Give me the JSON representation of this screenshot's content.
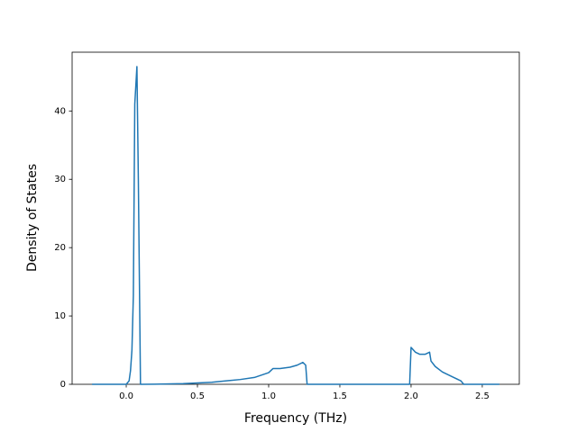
{
  "chart_data": {
    "type": "line",
    "xlabel": "Frequency (THz)",
    "ylabel": "Density of States",
    "x": [
      -0.24,
      0.0,
      0.02,
      0.03,
      0.04,
      0.05,
      0.06,
      0.075,
      0.085,
      0.095,
      0.1,
      0.11,
      0.2,
      0.4,
      0.6,
      0.8,
      0.9,
      1.0,
      1.03,
      1.08,
      1.15,
      1.2,
      1.24,
      1.26,
      1.27,
      1.5,
      1.99,
      2.0,
      2.03,
      2.06,
      2.1,
      2.13,
      2.14,
      2.17,
      2.22,
      2.3,
      2.35,
      2.37,
      2.62
    ],
    "values": [
      0,
      0,
      0.5,
      2,
      5,
      13,
      41,
      46.5,
      30,
      10,
      0,
      0,
      0.02,
      0.1,
      0.3,
      0.7,
      1.0,
      1.7,
      2.3,
      2.3,
      2.5,
      2.8,
      3.2,
      2.8,
      0,
      0,
      0,
      5.4,
      4.7,
      4.4,
      4.4,
      4.7,
      3.4,
      2.6,
      1.8,
      1.0,
      0.5,
      0,
      0
    ],
    "color": "#1f77b4",
    "xlim": [
      -0.38,
      2.76
    ],
    "ylim": [
      0,
      48.6
    ],
    "xticks": [
      {
        "value": 0,
        "label": "0.0"
      },
      {
        "value": 0.5,
        "label": "0.5"
      },
      {
        "value": 1,
        "label": "1.0"
      },
      {
        "value": 1.5,
        "label": "1.5"
      },
      {
        "value": 2,
        "label": "2.0"
      },
      {
        "value": 2.5,
        "label": "2.5"
      }
    ],
    "yticks": [
      0,
      10,
      20,
      30,
      40
    ],
    "grid": false
  }
}
